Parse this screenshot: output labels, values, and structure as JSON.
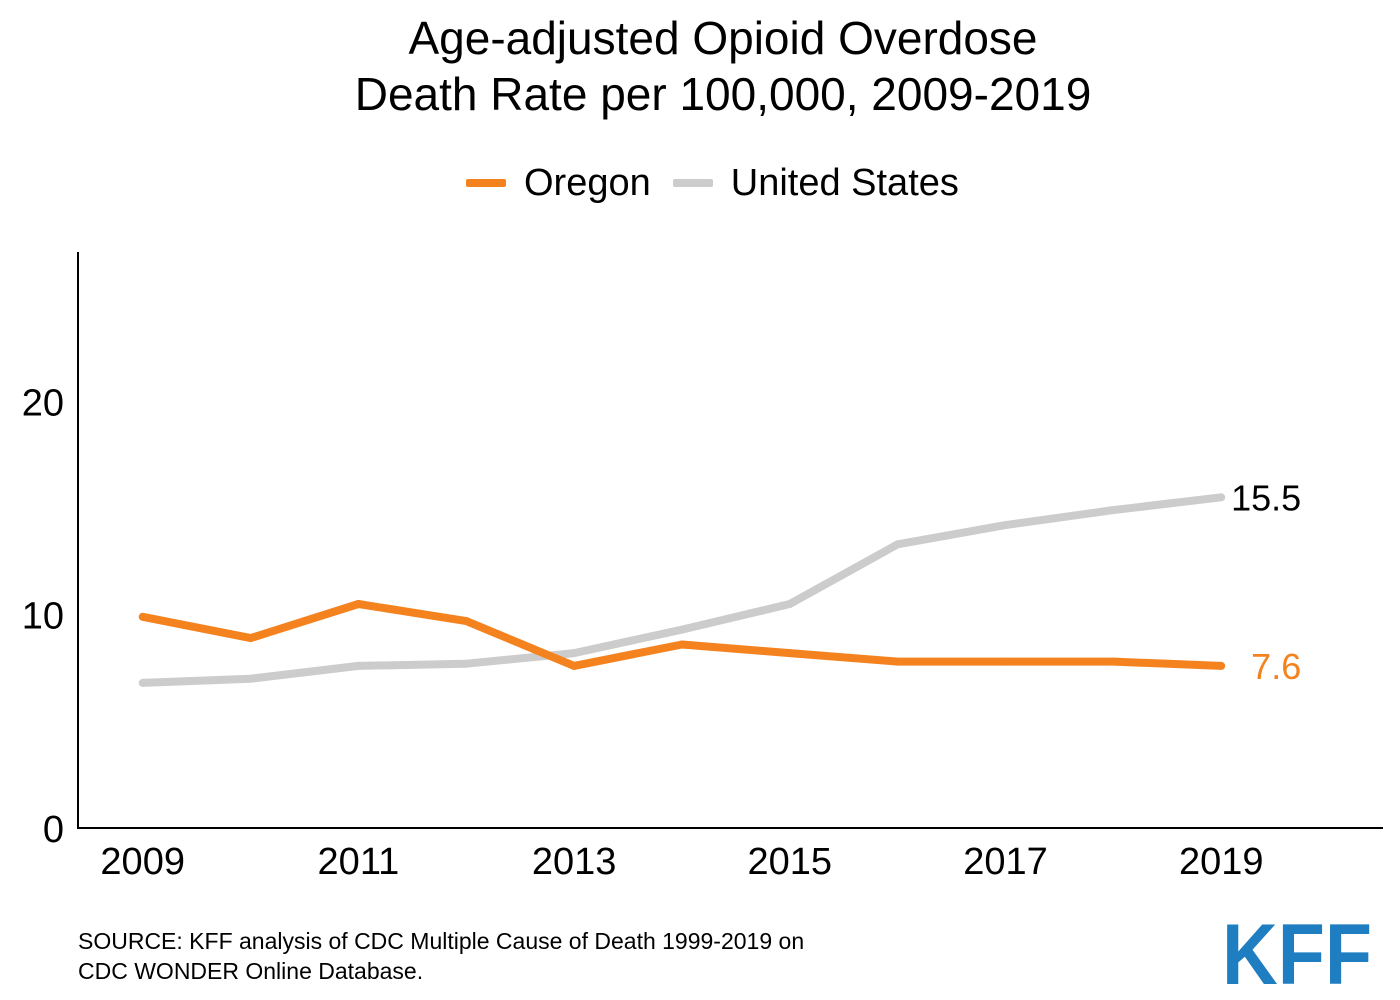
{
  "chart_data": {
    "type": "line",
    "title": [
      "Age-adjusted Opioid Overdose",
      "Death Rate per 100,000, 2009-2019"
    ],
    "xlabel": "",
    "ylabel": "",
    "x": [
      2009,
      2010,
      2011,
      2012,
      2013,
      2014,
      2015,
      2016,
      2017,
      2018,
      2019
    ],
    "xlim": [
      2008.4,
      2020.5
    ],
    "ylim": [
      0,
      27
    ],
    "x_ticks": [
      2009,
      2011,
      2013,
      2015,
      2017,
      2019
    ],
    "x_tick_labels": [
      "2009",
      "2011",
      "2013",
      "2015",
      "2017",
      "2019"
    ],
    "y_ticks": [
      0,
      10,
      20
    ],
    "y_tick_labels": [
      "0",
      "10",
      "20"
    ],
    "grid": false,
    "legend_position": "top",
    "series": [
      {
        "name": "Oregon",
        "color": "#f4831f",
        "values": [
          9.9,
          8.9,
          10.5,
          9.7,
          7.6,
          8.6,
          8.2,
          7.8,
          7.8,
          7.8,
          7.6
        ],
        "end_label": "7.6"
      },
      {
        "name": "United States",
        "color": "#cccccc",
        "values": [
          6.8,
          7.0,
          7.6,
          7.7,
          8.2,
          9.3,
          10.5,
          13.3,
          14.2,
          14.9,
          15.5
        ],
        "end_label": "15.5"
      }
    ]
  },
  "source": {
    "line1": "SOURCE: KFF analysis of CDC Multiple Cause of Death 1999-2019 on",
    "line2": "CDC WONDER Online Database."
  },
  "logo": {
    "text": "KFF",
    "color": "#1f7dc1",
    "icon": "kff-logo"
  }
}
